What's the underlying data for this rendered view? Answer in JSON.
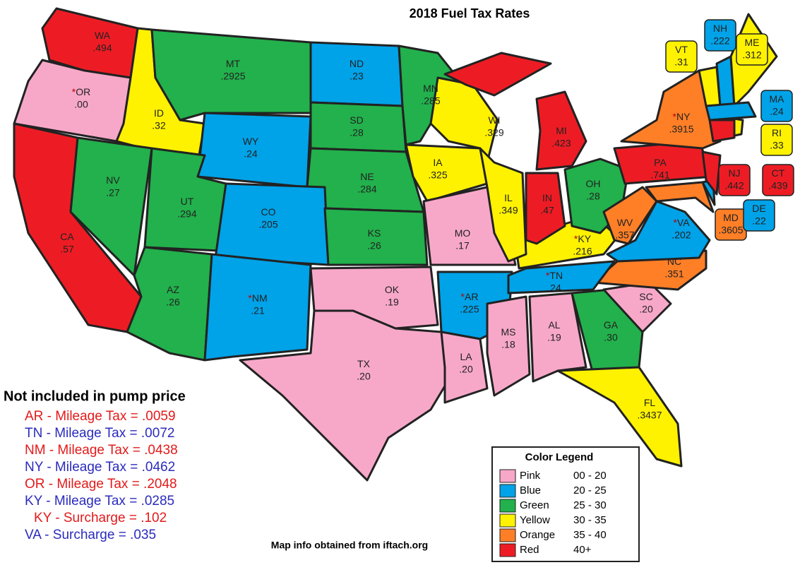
{
  "title": "2018 Fuel Tax Rates",
  "states": [
    {
      "code": "WA",
      "rate": ".494"
    },
    {
      "code": "OR",
      "rate": ".00",
      "flag": "*"
    },
    {
      "code": "ID",
      "rate": ".32"
    },
    {
      "code": "MT",
      "rate": ".2925"
    },
    {
      "code": "ND",
      "rate": ".23"
    },
    {
      "code": "SD",
      "rate": ".28"
    },
    {
      "code": "WY",
      "rate": ".24"
    },
    {
      "code": "NE",
      "rate": ".284"
    },
    {
      "code": "CA",
      "rate": ".57"
    },
    {
      "code": "NV",
      "rate": ".27"
    },
    {
      "code": "UT",
      "rate": ".294"
    },
    {
      "code": "CO",
      "rate": ".205"
    },
    {
      "code": "AZ",
      "rate": ".26"
    },
    {
      "code": "NM",
      "rate": ".21",
      "flag": "*"
    },
    {
      "code": "KS",
      "rate": ".26"
    },
    {
      "code": "OK",
      "rate": ".19"
    },
    {
      "code": "TX",
      "rate": ".20"
    },
    {
      "code": "MN",
      "rate": ".285"
    },
    {
      "code": "IA",
      "rate": ".325"
    },
    {
      "code": "MO",
      "rate": ".17"
    },
    {
      "code": "AR",
      "rate": ".225",
      "flag": "*"
    },
    {
      "code": "LA",
      "rate": ".20"
    },
    {
      "code": "MS",
      "rate": ".18"
    },
    {
      "code": "AL",
      "rate": ".19"
    },
    {
      "code": "GA",
      "rate": ".30"
    },
    {
      "code": "FL",
      "rate": ".3437"
    },
    {
      "code": "SC",
      "rate": ".20"
    },
    {
      "code": "NC",
      "rate": ".351"
    },
    {
      "code": "TN",
      "rate": ".24",
      "flag": "*"
    },
    {
      "code": "KY",
      "rate": ".216",
      "flag": "*"
    },
    {
      "code": "WI",
      "rate": ".329"
    },
    {
      "code": "IL",
      "rate": ".349"
    },
    {
      "code": "IN",
      "rate": ".47"
    },
    {
      "code": "MI",
      "rate": ".423"
    },
    {
      "code": "OH",
      "rate": ".28"
    },
    {
      "code": "WV",
      "rate": ".357"
    },
    {
      "code": "VA",
      "rate": ".202",
      "flag": "*"
    },
    {
      "code": "PA",
      "rate": ".741"
    },
    {
      "code": "NY",
      "rate": ".3915",
      "flag": "*"
    },
    {
      "code": "MD",
      "rate": ".3605"
    },
    {
      "code": "DE",
      "rate": ".22"
    },
    {
      "code": "NJ",
      "rate": ".442"
    },
    {
      "code": "VT",
      "rate": ".31"
    },
    {
      "code": "NH",
      "rate": ".222"
    },
    {
      "code": "ME",
      "rate": ".312"
    },
    {
      "code": "MA",
      "rate": ".24"
    },
    {
      "code": "CT",
      "rate": ".439"
    },
    {
      "code": "RI",
      "rate": ".33"
    }
  ],
  "notes": {
    "heading": "Not included in pump price",
    "lines": [
      "AR - Mileage Tax = .0059",
      "TN - Mileage Tax = .0072",
      "NM - Mileage Tax = .0438",
      "NY - Mileage Tax = .0462",
      "OR - Mileage Tax = .2048",
      "KY - Mileage Tax = .0285",
      "KY - Surcharge = .102",
      "VA - Surcharge = .035"
    ]
  },
  "legend": {
    "title": "Color Legend",
    "items": [
      {
        "name": "Pink",
        "range": "00 - 20"
      },
      {
        "name": "Blue",
        "range": "20 - 25"
      },
      {
        "name": "Green",
        "range": "25 - 30"
      },
      {
        "name": "Yellow",
        "range": "30 - 35"
      },
      {
        "name": "Orange",
        "range": "35 - 40"
      },
      {
        "name": "Red",
        "range": "40+"
      }
    ]
  },
  "source": "Map info obtained from iftach.org"
}
